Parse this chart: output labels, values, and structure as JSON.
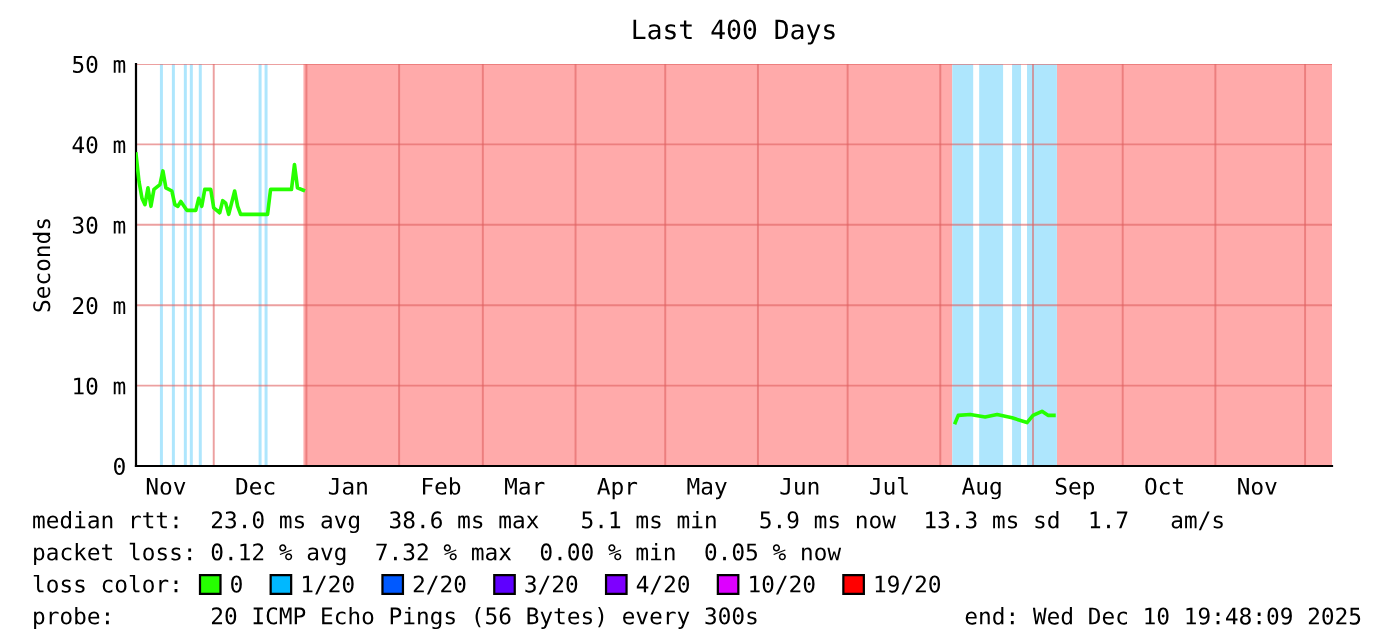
{
  "chart_data": {
    "type": "line",
    "title": "Last 400 Days",
    "ylabel": "Seconds",
    "x": [
      "2024-11-05",
      "2024-11-06",
      "2024-11-07",
      "2024-11-08",
      "2024-11-09",
      "2024-11-10",
      "2024-11-11",
      "2024-11-13",
      "2024-11-14",
      "2024-11-15",
      "2024-11-17",
      "2024-11-18",
      "2024-11-19",
      "2024-11-20",
      "2024-11-22",
      "2024-11-25",
      "2024-11-26",
      "2024-11-27",
      "2024-11-28",
      "2024-11-30",
      "2024-12-01",
      "2024-12-03",
      "2024-12-04",
      "2024-12-05",
      "2024-12-06",
      "2024-12-08",
      "2024-12-09",
      "2024-12-10",
      "2024-12-19",
      "2024-12-20",
      "2024-12-27",
      "2024-12-28",
      "2024-12-29",
      "2024-12-31",
      "2025-03-01",
      "2025-08-06",
      "2025-08-07",
      "2025-08-11",
      "2025-08-16",
      "2025-08-20",
      "2025-08-25",
      "2025-08-30",
      "2025-09-01",
      "2025-09-04",
      "2025-09-06",
      "2025-09-08"
    ],
    "series": [
      {
        "name": "0",
        "color": "#26ff00",
        "values": [
          38.8,
          35.4,
          33.3,
          32.5,
          34.6,
          32.3,
          34.4,
          35.0,
          36.7,
          34.6,
          34.2,
          32.5,
          32.3,
          32.9,
          31.8,
          31.8,
          33.3,
          32.3,
          34.4,
          34.4,
          32.1,
          31.5,
          33.0,
          32.7,
          31.3,
          34.2,
          32.3,
          31.3,
          31.3,
          34.4,
          34.4,
          37.5,
          34.6,
          34.3,
          null,
          5.4,
          6.3,
          6.4,
          6.1,
          6.4,
          6.0,
          5.4,
          6.3,
          6.8,
          6.3,
          6.3
        ]
      },
      {
        "name": "1/20",
        "color": "#00b8ff",
        "values": [
          null,
          null,
          null,
          null,
          null,
          null,
          null,
          null,
          null,
          null,
          null,
          null,
          null,
          null,
          null,
          null,
          null,
          null,
          null,
          null,
          null,
          null,
          null,
          null,
          null,
          null,
          null,
          null,
          null,
          null,
          null,
          null,
          null,
          null,
          null,
          null,
          null,
          null,
          null,
          null,
          null,
          null,
          null,
          null,
          null,
          null
        ]
      },
      {
        "name": "2/20",
        "color": "#0059ff",
        "values": [
          null,
          null,
          null,
          null,
          null,
          null,
          null,
          null,
          null,
          null,
          null,
          null,
          null,
          null,
          null,
          null,
          null,
          null,
          null,
          null,
          null,
          null,
          null,
          null,
          null,
          null,
          null,
          null,
          null,
          null,
          null,
          null,
          null,
          null,
          null,
          null,
          null,
          null,
          null,
          null,
          null,
          null,
          null,
          null,
          null,
          null
        ]
      },
      {
        "name": "3/20",
        "color": "#5e00ff",
        "values": [
          null,
          null,
          null,
          null,
          null,
          null,
          null,
          null,
          null,
          null,
          null,
          null,
          null,
          null,
          null,
          null,
          null,
          null,
          null,
          null,
          null,
          null,
          null,
          null,
          null,
          null,
          null,
          null,
          null,
          null,
          null,
          null,
          null,
          null,
          null,
          null,
          null,
          null,
          null,
          null,
          null,
          null,
          null,
          null,
          null,
          null
        ]
      },
      {
        "name": "4/20",
        "color": "#7e00ff",
        "values": [
          null,
          null,
          null,
          null,
          null,
          null,
          null,
          null,
          null,
          null,
          null,
          null,
          null,
          null,
          null,
          null,
          null,
          null,
          null,
          null,
          null,
          null,
          null,
          null,
          null,
          null,
          null,
          null,
          null,
          null,
          null,
          null,
          null,
          null,
          null,
          null,
          null,
          null,
          null,
          null,
          null,
          null,
          null,
          null,
          null,
          null
        ]
      },
      {
        "name": "10/20",
        "color": "#dd00ff",
        "values": [
          null,
          null,
          null,
          null,
          null,
          null,
          null,
          null,
          null,
          null,
          null,
          null,
          null,
          null,
          null,
          null,
          null,
          null,
          null,
          null,
          null,
          null,
          null,
          null,
          null,
          null,
          null,
          null,
          null,
          null,
          null,
          null,
          null,
          null,
          null,
          null,
          null,
          null,
          null,
          null,
          null,
          null,
          null,
          null,
          null,
          null
        ]
      },
      {
        "name": "19/20",
        "color": "#ff0000",
        "values": [
          null,
          null,
          null,
          null,
          null,
          null,
          null,
          null,
          null,
          null,
          null,
          null,
          null,
          null,
          null,
          null,
          null,
          null,
          null,
          null,
          null,
          null,
          null,
          null,
          null,
          null,
          null,
          null,
          null,
          null,
          null,
          null,
          null,
          null,
          null,
          null,
          null,
          null,
          null,
          null,
          null,
          null,
          null,
          null,
          null,
          null
        ]
      }
    ],
    "xlim": [
      "2024-11-05",
      "2025-12-10"
    ],
    "xticks": [
      {
        "value": "2024-11-15",
        "label": "Nov"
      },
      {
        "value": "2024-12-01",
        "label": null
      },
      {
        "value": "2024-12-15",
        "label": "Dec"
      },
      {
        "value": "2025-01-01",
        "label": null
      },
      {
        "value": "2025-01-15",
        "label": "Jan"
      },
      {
        "value": "2025-02-01",
        "label": null
      },
      {
        "value": "2025-02-15",
        "label": "Feb"
      },
      {
        "value": "2025-03-01",
        "label": null
      },
      {
        "value": "2025-03-15",
        "label": "Mar"
      },
      {
        "value": "2025-04-01",
        "label": null
      },
      {
        "value": "2025-04-15",
        "label": "Apr"
      },
      {
        "value": "2025-05-01",
        "label": null
      },
      {
        "value": "2025-05-15",
        "label": "May"
      },
      {
        "value": "2025-06-01",
        "label": null
      },
      {
        "value": "2025-06-15",
        "label": "Jun"
      },
      {
        "value": "2025-07-01",
        "label": null
      },
      {
        "value": "2025-07-15",
        "label": "Jul"
      },
      {
        "value": "2025-08-01",
        "label": null
      },
      {
        "value": "2025-08-15",
        "label": "Aug"
      },
      {
        "value": "2025-09-01",
        "label": null
      },
      {
        "value": "2025-09-15",
        "label": "Sep"
      },
      {
        "value": "2025-10-01",
        "label": null
      },
      {
        "value": "2025-10-15",
        "label": "Oct"
      },
      {
        "value": "2025-11-01",
        "label": null
      },
      {
        "value": "2025-11-15",
        "label": "Nov"
      },
      {
        "value": "2025-12-01",
        "label": null
      }
    ],
    "ylim": [
      0,
      50
    ],
    "yticks": [
      0,
      {
        "value": 10,
        "label": "10 m"
      },
      {
        "value": 20,
        "label": "20 m"
      },
      {
        "value": 30,
        "label": "30 m"
      },
      {
        "value": 40,
        "label": "40 m"
      },
      {
        "value": 50,
        "label": "50 m"
      }
    ],
    "grid": true,
    "legend": "bottom",
    "legend_title": "loss color:",
    "marker": "none",
    "line_style": "solid",
    "bands": [
      {
        "axis": "x",
        "from": "2024-12-31",
        "to": "2025-08-05",
        "color": "#ffaaaa"
      },
      {
        "axis": "x",
        "from": "2025-09-09",
        "to": "2025-12-10",
        "color": "#ffaaaa"
      },
      {
        "axis": "x",
        "from": "2024-11-13",
        "to": "2024-11-14",
        "color": "#aee6fd"
      },
      {
        "axis": "x",
        "from": "2024-11-17",
        "to": "2024-11-18",
        "color": "#aee6fd"
      },
      {
        "axis": "x",
        "from": "2024-11-21",
        "to": "2024-11-22",
        "color": "#aee6fd"
      },
      {
        "axis": "x",
        "from": "2024-11-23",
        "to": "2024-11-24",
        "color": "#aee6fd"
      },
      {
        "axis": "x",
        "from": "2024-11-26",
        "to": "2024-11-27",
        "color": "#aee6fd"
      },
      {
        "axis": "x",
        "from": "2024-12-16",
        "to": "2024-12-17",
        "color": "#aee6fd"
      },
      {
        "axis": "x",
        "from": "2024-12-18",
        "to": "2024-12-19",
        "color": "#aee6fd"
      },
      {
        "axis": "x",
        "from": "2025-08-05",
        "to": "2025-08-12",
        "color": "#aee6fd"
      },
      {
        "axis": "x",
        "from": "2025-08-14",
        "to": "2025-08-22",
        "color": "#aee6fd"
      },
      {
        "axis": "x",
        "from": "2025-08-25",
        "to": "2025-08-28",
        "color": "#aee6fd"
      },
      {
        "axis": "x",
        "from": "2025-08-30",
        "to": "2025-09-09",
        "color": "#aee6fd"
      }
    ],
    "annotations": [
      "median rtt:  23.0 ms avg  38.6 ms max   5.1 ms min   5.9 ms now  13.3 ms sd  1.7   am/s",
      "packet loss: 0.12 % avg  7.32 % max  0.00 % min  0.05 % now",
      "probe:       20 ICMP Echo Pings (56 Bytes) every 300s",
      "end: Wed Dec 10 19:48:09 2025"
    ]
  }
}
